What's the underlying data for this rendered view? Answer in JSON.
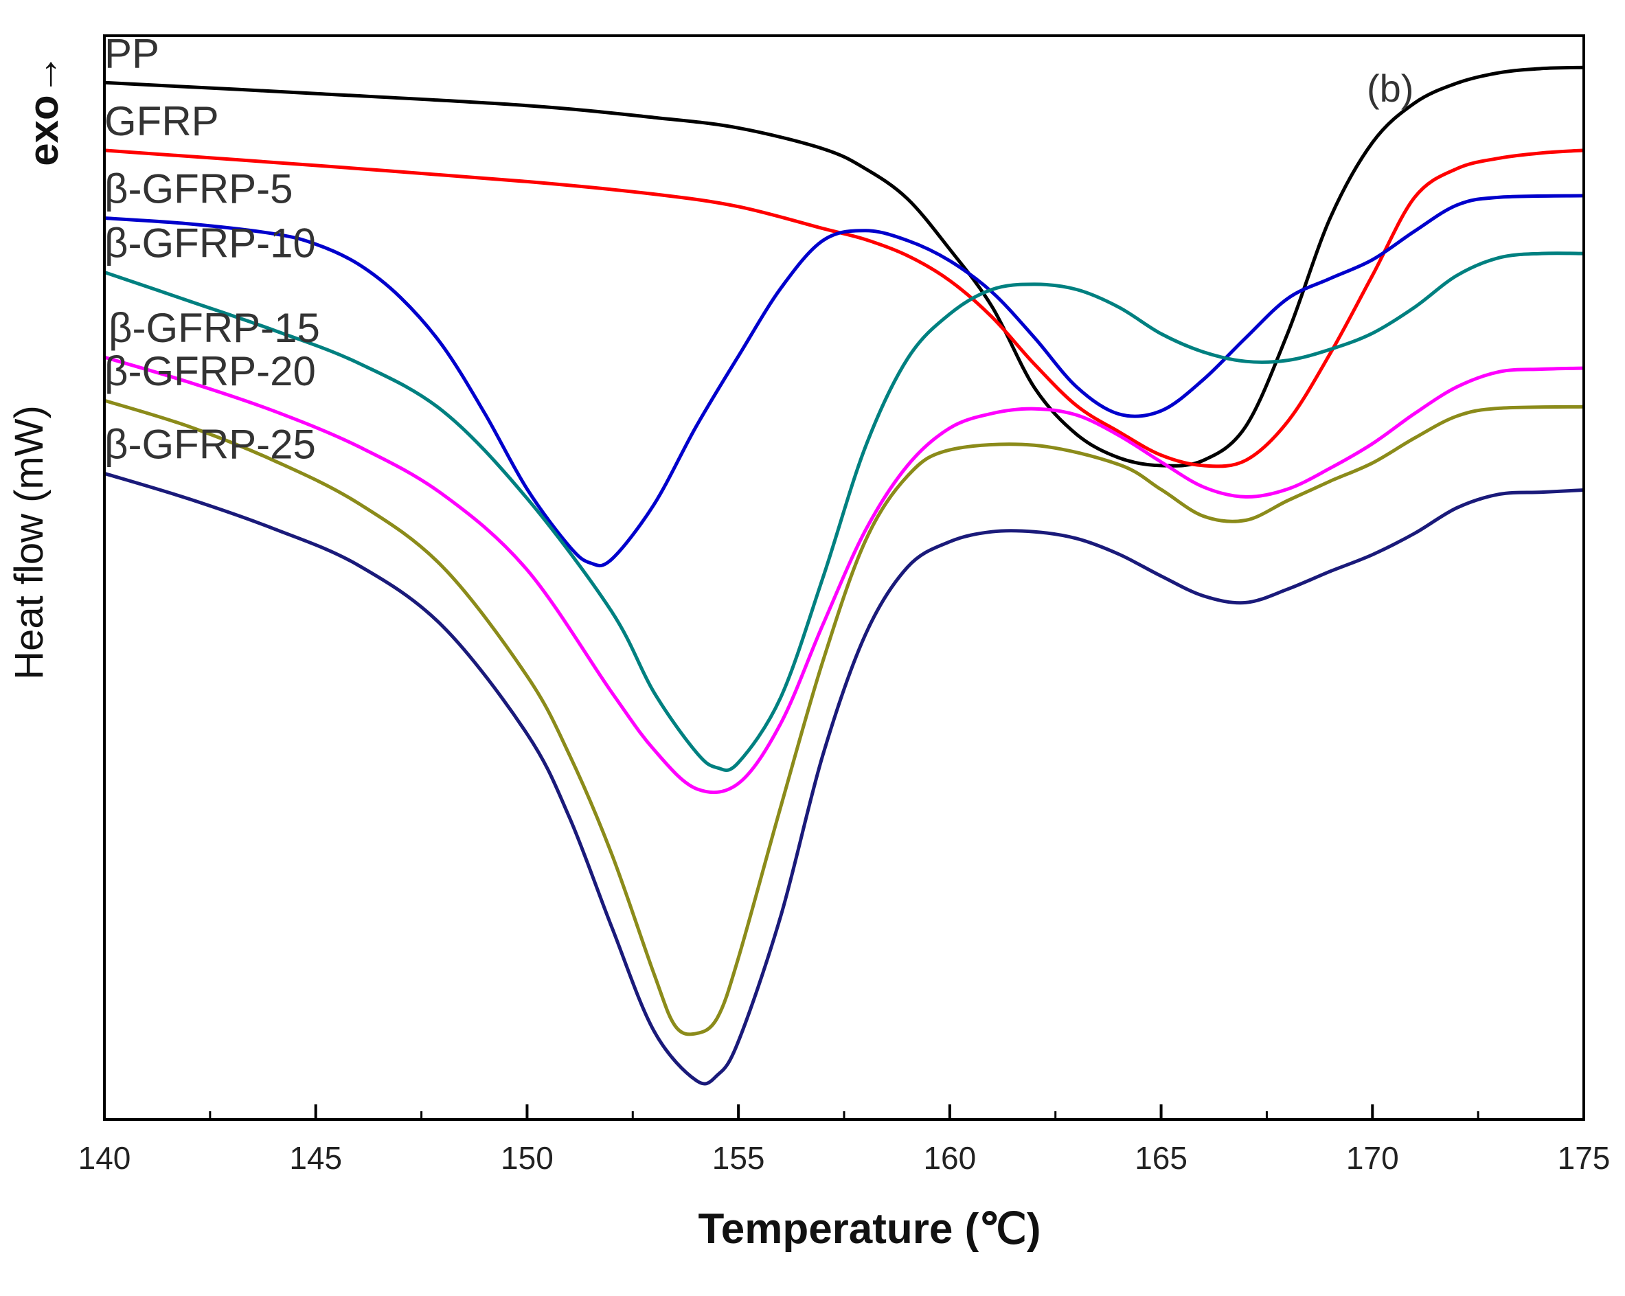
{
  "chart_data": {
    "type": "line",
    "panel_label": "(b)",
    "xlabel": "Temperature (℃)",
    "ylabel": "Heat flow  (mW)",
    "exo_label": "exo→",
    "xlim": [
      140,
      175
    ],
    "x_ticks": [
      140,
      145,
      150,
      155,
      160,
      165,
      170,
      175
    ],
    "y_ticks_visible": false,
    "series": [
      {
        "name": "PP",
        "color": "#000000",
        "points": [
          [
            140,
            1.3
          ],
          [
            145,
            1.09
          ],
          [
            150,
            0.86
          ],
          [
            153,
            0.63
          ],
          [
            155,
            0.43
          ],
          [
            157,
            0.03
          ],
          [
            158,
            -0.35
          ],
          [
            159,
            -0.93
          ],
          [
            160,
            -1.9
          ],
          [
            161,
            -3.0
          ],
          [
            162,
            -4.55
          ],
          [
            163,
            -5.45
          ],
          [
            164,
            -5.9
          ],
          [
            165,
            -6.05
          ],
          [
            166,
            -5.95
          ],
          [
            167,
            -5.3
          ],
          [
            168,
            -3.5
          ],
          [
            169,
            -1.3
          ],
          [
            170,
            0.15
          ],
          [
            171,
            0.91
          ],
          [
            172,
            1.29
          ],
          [
            173,
            1.49
          ],
          [
            174,
            1.57
          ],
          [
            175,
            1.59
          ]
        ]
      },
      {
        "name": "GFRP",
        "color": "#ff0000",
        "points": [
          [
            140,
            0.0
          ],
          [
            145,
            -0.29
          ],
          [
            150,
            -0.6
          ],
          [
            153,
            -0.84
          ],
          [
            155,
            -1.08
          ],
          [
            157,
            -1.5
          ],
          [
            158,
            -1.71
          ],
          [
            159,
            -2.02
          ],
          [
            160,
            -2.5
          ],
          [
            161,
            -3.2
          ],
          [
            162,
            -4.1
          ],
          [
            163,
            -4.9
          ],
          [
            164,
            -5.4
          ],
          [
            165,
            -5.85
          ],
          [
            166,
            -6.05
          ],
          [
            167,
            -5.95
          ],
          [
            168,
            -5.2
          ],
          [
            169,
            -3.9
          ],
          [
            170,
            -2.4
          ],
          [
            171,
            -0.9
          ],
          [
            172,
            -0.35
          ],
          [
            173,
            -0.15
          ],
          [
            174,
            -0.05
          ],
          [
            175,
            0.0
          ]
        ]
      },
      {
        "name": "β-GFRP-5",
        "color": "#0000cc",
        "points": [
          [
            140,
            -1.3
          ],
          [
            142,
            -1.41
          ],
          [
            144,
            -1.6
          ],
          [
            145,
            -1.8
          ],
          [
            146,
            -2.18
          ],
          [
            147,
            -2.82
          ],
          [
            148,
            -3.75
          ],
          [
            149,
            -5.05
          ],
          [
            150,
            -6.5
          ],
          [
            151,
            -7.6
          ],
          [
            151.5,
            -7.92
          ],
          [
            152,
            -7.85
          ],
          [
            153,
            -6.8
          ],
          [
            154,
            -5.3
          ],
          [
            155,
            -3.95
          ],
          [
            156,
            -2.65
          ],
          [
            157,
            -1.73
          ],
          [
            158,
            -1.54
          ],
          [
            159,
            -1.73
          ],
          [
            160,
            -2.12
          ],
          [
            161,
            -2.72
          ],
          [
            162,
            -3.59
          ],
          [
            163,
            -4.54
          ],
          [
            164,
            -5.06
          ],
          [
            165,
            -5.0
          ],
          [
            166,
            -4.4
          ],
          [
            167,
            -3.6
          ],
          [
            168,
            -2.84
          ],
          [
            169,
            -2.46
          ],
          [
            170,
            -2.1
          ],
          [
            171,
            -1.55
          ],
          [
            172,
            -1.05
          ],
          [
            173,
            -0.9
          ],
          [
            175,
            -0.87
          ]
        ]
      },
      {
        "name": "β-GFRP-10",
        "color": "#008080",
        "points": [
          [
            140,
            -2.34
          ],
          [
            142,
            -2.89
          ],
          [
            144,
            -3.45
          ],
          [
            146,
            -4.08
          ],
          [
            148,
            -5.0
          ],
          [
            150,
            -6.68
          ],
          [
            152,
            -8.85
          ],
          [
            153,
            -10.4
          ],
          [
            154,
            -11.55
          ],
          [
            154.5,
            -11.85
          ],
          [
            155,
            -11.75
          ],
          [
            156,
            -10.5
          ],
          [
            157,
            -8.2
          ],
          [
            158,
            -5.7
          ],
          [
            159,
            -4.0
          ],
          [
            160,
            -3.14
          ],
          [
            161,
            -2.67
          ],
          [
            162,
            -2.57
          ],
          [
            163,
            -2.67
          ],
          [
            164,
            -3.01
          ],
          [
            165,
            -3.52
          ],
          [
            166,
            -3.87
          ],
          [
            167,
            -4.05
          ],
          [
            168,
            -4.03
          ],
          [
            169,
            -3.82
          ],
          [
            170,
            -3.51
          ],
          [
            171,
            -3.01
          ],
          [
            172,
            -2.4
          ],
          [
            173,
            -2.06
          ],
          [
            174,
            -1.98
          ],
          [
            175,
            -1.98
          ]
        ]
      },
      {
        "name": "β-GFRP-15",
        "color": "#ff00ff",
        "points": [
          [
            140,
            -3.97
          ],
          [
            142,
            -4.45
          ],
          [
            144,
            -5.0
          ],
          [
            146,
            -5.68
          ],
          [
            148,
            -6.6
          ],
          [
            150,
            -8.05
          ],
          [
            152,
            -10.4
          ],
          [
            153,
            -11.5
          ],
          [
            154,
            -12.25
          ],
          [
            155,
            -12.15
          ],
          [
            156,
            -11.0
          ],
          [
            157,
            -9.1
          ],
          [
            158,
            -7.3
          ],
          [
            159,
            -6.05
          ],
          [
            160,
            -5.33
          ],
          [
            161,
            -5.05
          ],
          [
            162,
            -4.96
          ],
          [
            163,
            -5.08
          ],
          [
            164,
            -5.47
          ],
          [
            165,
            -5.98
          ],
          [
            166,
            -6.46
          ],
          [
            167,
            -6.65
          ],
          [
            168,
            -6.5
          ],
          [
            169,
            -6.1
          ],
          [
            170,
            -5.63
          ],
          [
            171,
            -5.05
          ],
          [
            172,
            -4.54
          ],
          [
            173,
            -4.25
          ],
          [
            174,
            -4.2
          ],
          [
            175,
            -4.18
          ]
        ]
      },
      {
        "name": "β-GFRP-20",
        "color": "#8b8b1a",
        "points": [
          [
            140,
            -4.8
          ],
          [
            142,
            -5.3
          ],
          [
            144,
            -5.95
          ],
          [
            146,
            -6.77
          ],
          [
            148,
            -7.99
          ],
          [
            150,
            -10.09
          ],
          [
            151,
            -11.6
          ],
          [
            152,
            -13.5
          ],
          [
            153,
            -15.8
          ],
          [
            153.5,
            -16.8
          ],
          [
            154,
            -16.95
          ],
          [
            154.5,
            -16.65
          ],
          [
            155,
            -15.5
          ],
          [
            156,
            -12.6
          ],
          [
            157,
            -9.8
          ],
          [
            158,
            -7.5
          ],
          [
            159,
            -6.25
          ],
          [
            160,
            -5.75
          ],
          [
            162,
            -5.66
          ],
          [
            164,
            -6.03
          ],
          [
            165,
            -6.51
          ],
          [
            166,
            -7.02
          ],
          [
            167,
            -7.1
          ],
          [
            168,
            -6.72
          ],
          [
            169,
            -6.35
          ],
          [
            170,
            -6.0
          ],
          [
            171,
            -5.52
          ],
          [
            172,
            -5.1
          ],
          [
            173,
            -4.95
          ],
          [
            175,
            -4.92
          ]
        ]
      },
      {
        "name": "β-GFRP-25",
        "color": "#1a1a7a",
        "points": [
          [
            140,
            -6.2
          ],
          [
            142,
            -6.69
          ],
          [
            144,
            -7.26
          ],
          [
            146,
            -7.96
          ],
          [
            148,
            -9.13
          ],
          [
            150,
            -11.2
          ],
          [
            151,
            -12.8
          ],
          [
            152,
            -14.9
          ],
          [
            153,
            -16.9
          ],
          [
            154,
            -17.85
          ],
          [
            154.5,
            -17.75
          ],
          [
            155,
            -17.1
          ],
          [
            156,
            -14.7
          ],
          [
            157,
            -11.6
          ],
          [
            158,
            -9.3
          ],
          [
            159,
            -8.0
          ],
          [
            160,
            -7.51
          ],
          [
            161,
            -7.32
          ],
          [
            162,
            -7.32
          ],
          [
            163,
            -7.45
          ],
          [
            164,
            -7.75
          ],
          [
            165,
            -8.17
          ],
          [
            166,
            -8.55
          ],
          [
            167,
            -8.68
          ],
          [
            168,
            -8.42
          ],
          [
            169,
            -8.08
          ],
          [
            170,
            -7.76
          ],
          [
            171,
            -7.35
          ],
          [
            172,
            -6.86
          ],
          [
            173,
            -6.6
          ],
          [
            174,
            -6.56
          ],
          [
            175,
            -6.52
          ]
        ]
      }
    ]
  }
}
